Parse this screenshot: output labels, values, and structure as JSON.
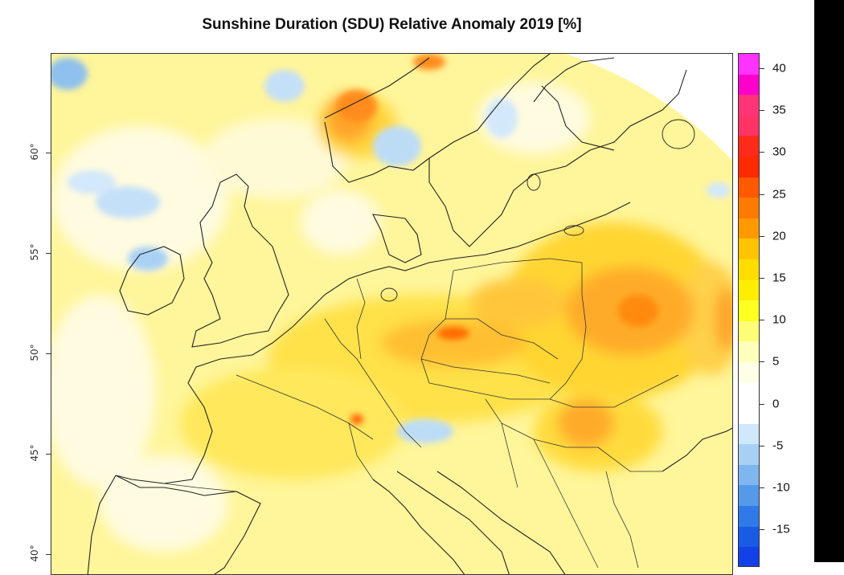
{
  "title": "Sunshine Duration (SDU) Relative Anomaly 2019 [%]",
  "map": {
    "type": "choropleth-anomaly",
    "region": "Europe",
    "latitude_labels": [
      "60°",
      "55°",
      "50°",
      "45°",
      "40°"
    ]
  },
  "colorbar": {
    "labels": [
      "40",
      "35",
      "30",
      "25",
      "20",
      "15",
      "10",
      "5",
      "0",
      "-5",
      "-10",
      "-15"
    ],
    "colors": [
      "#ff33ff",
      "#ff00cc",
      "#ff3377",
      "#ff3366",
      "#ff2a1a",
      "#ff2a00",
      "#ff5a00",
      "#ff7a00",
      "#ff9900",
      "#ffc400",
      "#ffdd00",
      "#ffee00",
      "#ffff22",
      "#ffff77",
      "#ffffbb",
      "#ffffe8",
      "#ffffff",
      "#ffffff",
      "#cfe8fb",
      "#a8d0f5",
      "#7fb6ee",
      "#5599ea",
      "#2f7ae8",
      "#1a5be6",
      "#1440e8"
    ]
  }
}
